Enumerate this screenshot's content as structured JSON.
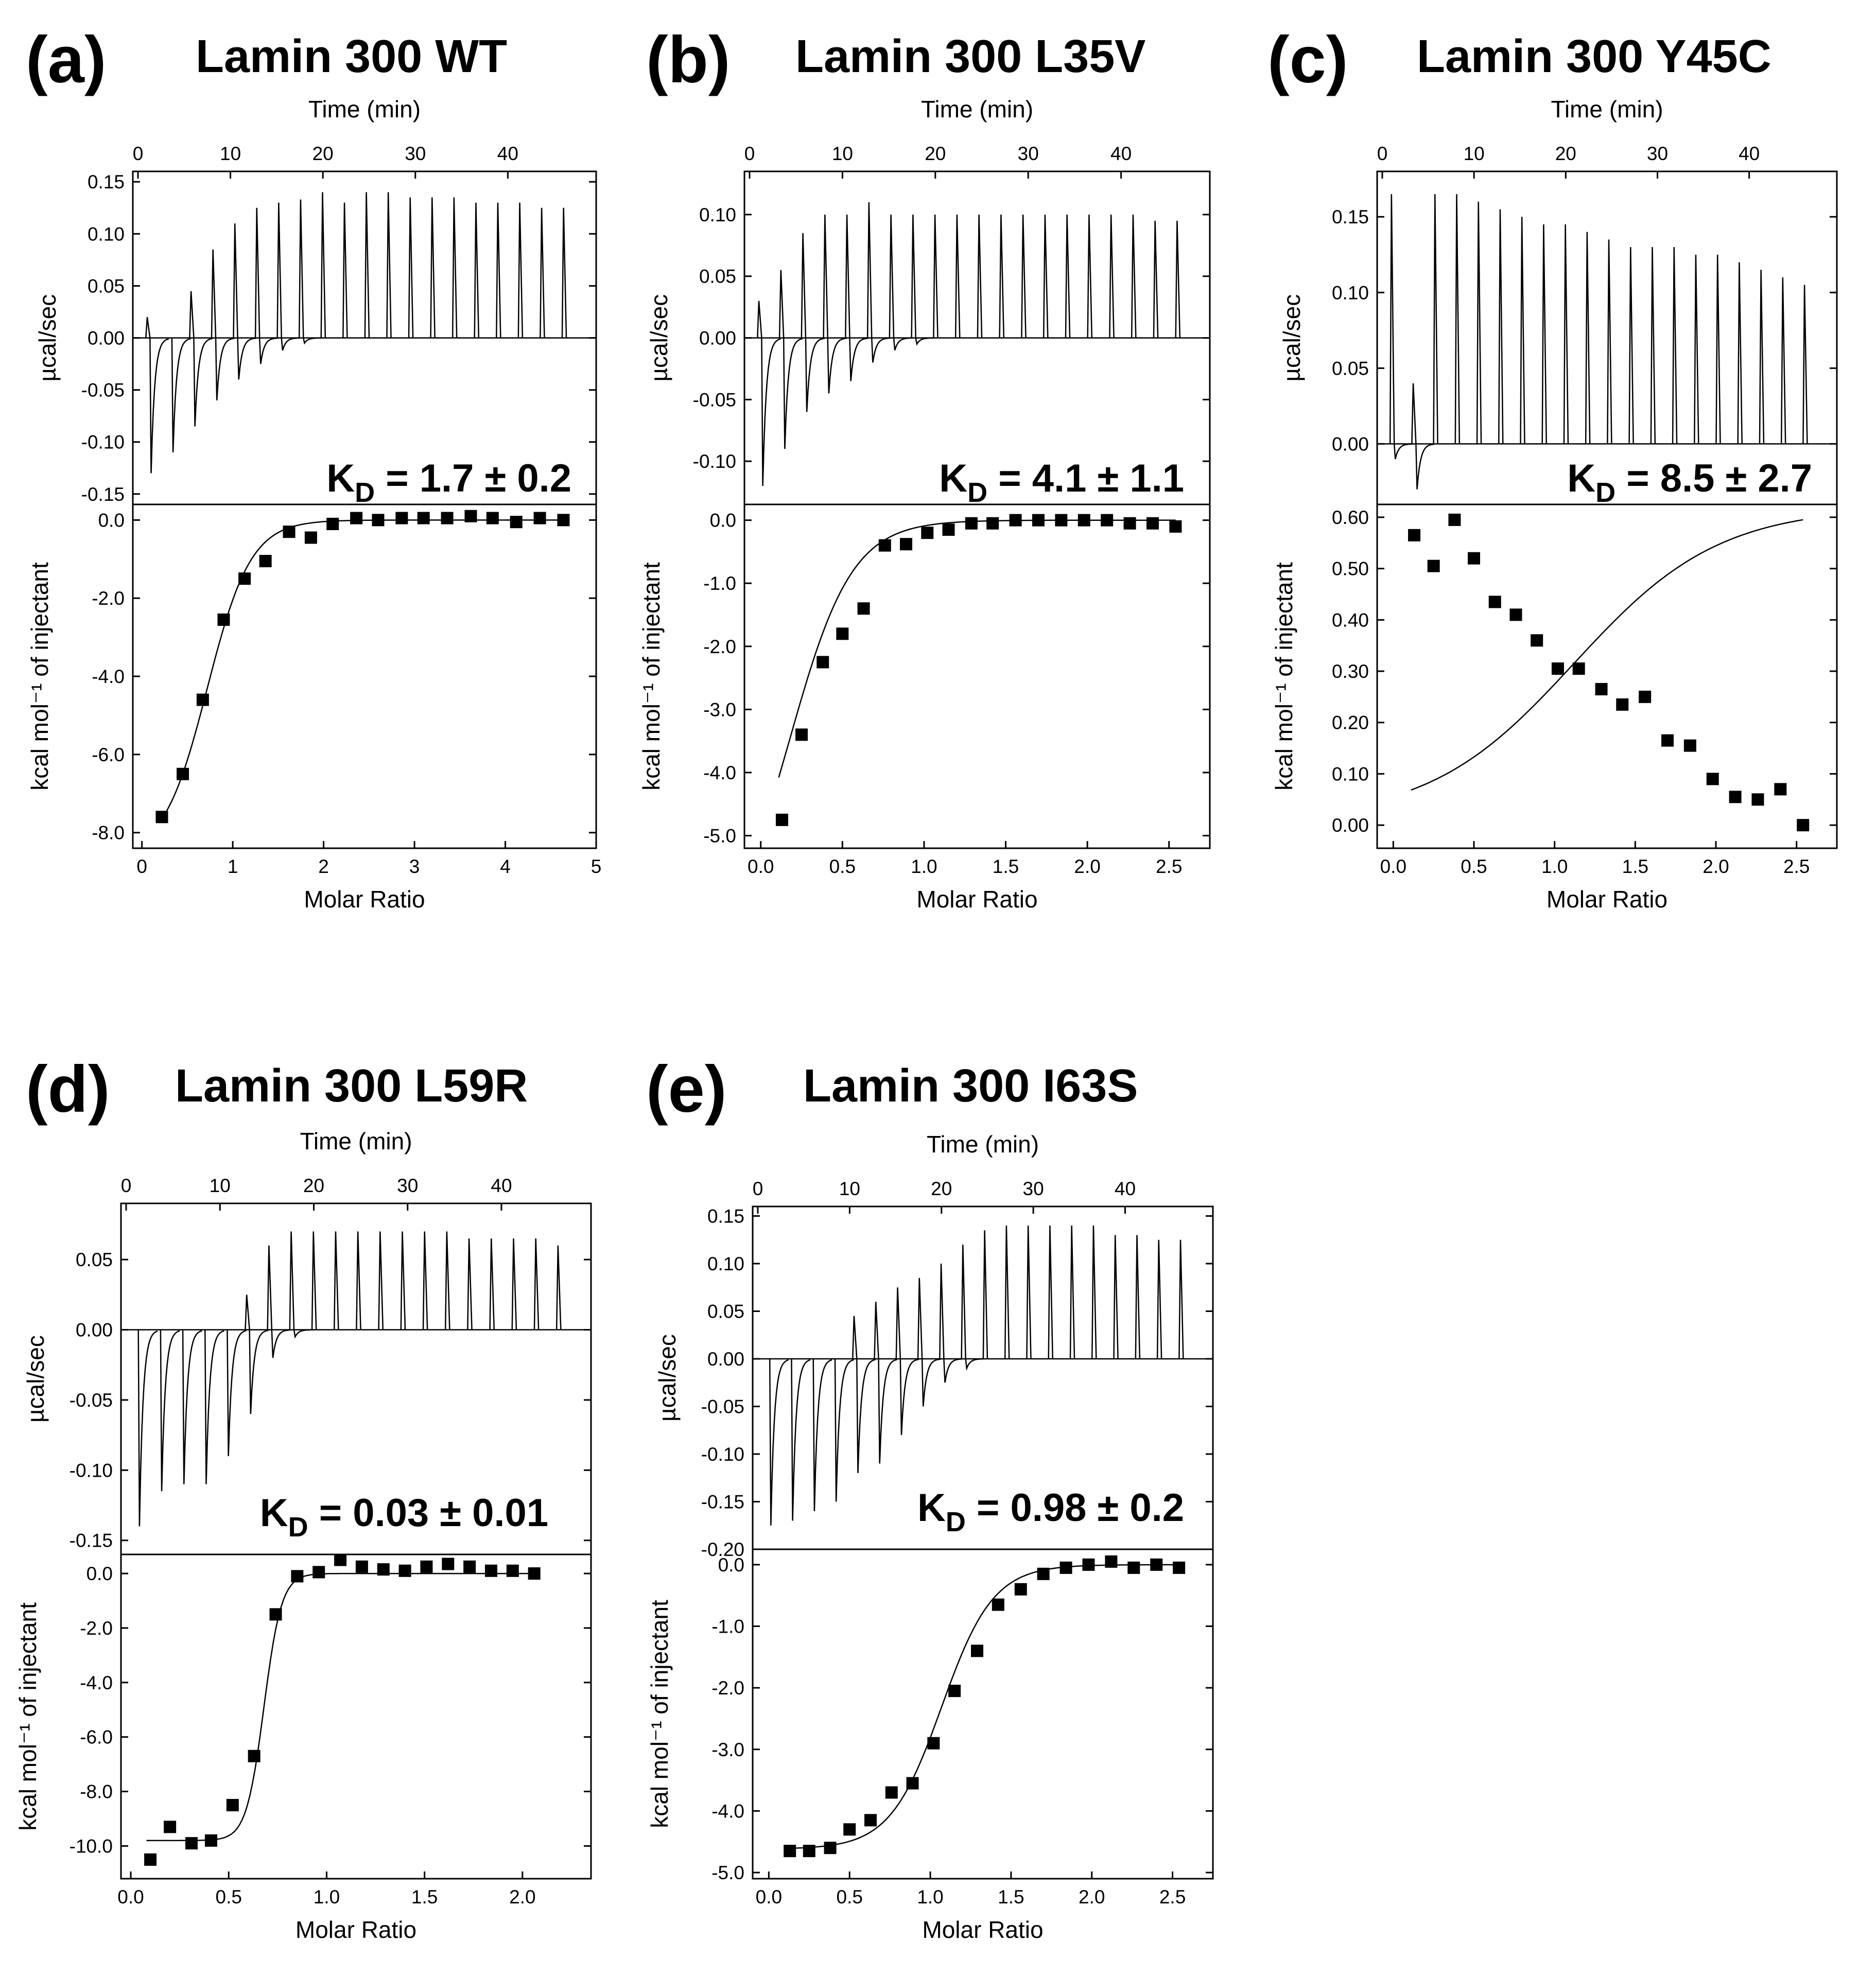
{
  "figure": {
    "colors": {
      "ink": "#000000",
      "background": "#ffffff"
    },
    "panels": [
      {
        "id": "a",
        "letter": "(a)",
        "title": "Lamin 300 WT",
        "kd": {
          "prefix": "K",
          "sub": "D",
          "text": " = 1.7 ± 0.2"
        },
        "chart_data": [
          {
            "type": "line",
            "role": "thermogram",
            "xlabel": "Time (min)",
            "ylabel": "µcal/sec",
            "xlim": [
              0,
              49
            ],
            "ylim": [
              -0.16,
              0.16
            ],
            "xticks": [
              0,
              10,
              20,
              30,
              40
            ],
            "yticks": [
              0.15,
              0.1,
              0.05,
              0.0,
              -0.05,
              -0.1,
              -0.15
            ],
            "ytick_labels": [
              "0.15",
              "0.10",
              "0.05",
              "0.00",
              "-0.05",
              "-0.10",
              "-0.15"
            ],
            "injection_start_min": 1.0,
            "injection_interval_min": 2.37,
            "up_peaks": [
              0.02,
              0.0,
              0.045,
              0.085,
              0.11,
              0.125,
              0.13,
              0.133,
              0.14,
              0.13,
              0.14,
              0.14,
              0.135,
              0.135,
              0.135,
              0.13,
              0.13,
              0.13,
              0.125,
              0.125
            ],
            "down_peaks": [
              -0.13,
              -0.11,
              -0.085,
              -0.06,
              -0.04,
              -0.025,
              -0.012,
              -0.005,
              0,
              0,
              0,
              0,
              0,
              0,
              0,
              0,
              0,
              0,
              0,
              0
            ]
          },
          {
            "type": "scatter",
            "role": "binding_isotherm",
            "xlabel": "Molar Ratio",
            "ylabel": "kcal mol⁻¹ of injectant",
            "xlim": [
              -0.1,
              5.0
            ],
            "ylim": [
              -8.4,
              0.4
            ],
            "xticks": [
              0,
              1,
              2,
              3,
              4,
              5
            ],
            "xtick_labels": [
              "0",
              "1",
              "2",
              "3",
              "4",
              "5"
            ],
            "yticks": [
              0.0,
              -2.0,
              -4.0,
              -6.0,
              -8.0
            ],
            "ytick_labels": [
              "0.0",
              "-2.0",
              "-4.0",
              "-6.0",
              "-8.0"
            ],
            "x": [
              0.22,
              0.45,
              0.67,
              0.9,
              1.13,
              1.36,
              1.62,
              1.86,
              2.1,
              2.36,
              2.6,
              2.86,
              3.1,
              3.36,
              3.62,
              3.86,
              4.12,
              4.38,
              4.64
            ],
            "y": [
              -7.6,
              -6.5,
              -4.6,
              -2.55,
              -1.5,
              -1.05,
              -0.3,
              -0.45,
              -0.1,
              0.05,
              0.0,
              0.05,
              0.05,
              0.05,
              0.1,
              0.05,
              -0.05,
              0.05,
              0.0
            ],
            "fit": {
              "model": "sigmoid",
              "bottom": -8.6,
              "top": 0.0,
              "midpoint": 0.72,
              "width": 0.24
            }
          }
        ]
      },
      {
        "id": "b",
        "letter": "(b)",
        "title": "Lamin 300 L35V",
        "kd": {
          "prefix": "K",
          "sub": "D",
          "text": " = 4.1 ± 1.1"
        },
        "chart_data": [
          {
            "type": "line",
            "role": "thermogram",
            "xlabel": "Time (min)",
            "ylabel": "µcal/sec",
            "xlim": [
              0,
              49
            ],
            "ylim": [
              -0.135,
              0.135
            ],
            "xticks": [
              0,
              10,
              20,
              30,
              40
            ],
            "yticks": [
              0.1,
              0.05,
              0.0,
              -0.05,
              -0.1
            ],
            "ytick_labels": [
              "0.10",
              "0.05",
              "0.00",
              "-0.05",
              "-0.10"
            ],
            "injection_start_min": 1.0,
            "injection_interval_min": 2.37,
            "up_peaks": [
              0.03,
              0.055,
              0.085,
              0.1,
              0.1,
              0.11,
              0.1,
              0.1,
              0.1,
              0.1,
              0.1,
              0.1,
              0.1,
              0.1,
              0.1,
              0.1,
              0.1,
              0.1,
              0.095,
              0.095
            ],
            "down_peaks": [
              -0.12,
              -0.09,
              -0.06,
              -0.045,
              -0.035,
              -0.02,
              -0.01,
              -0.005,
              0,
              0,
              0,
              0,
              0,
              0,
              0,
              0,
              0,
              0,
              0,
              0
            ]
          },
          {
            "type": "scatter",
            "role": "binding_isotherm",
            "xlabel": "Molar Ratio",
            "ylabel": "kcal mol⁻¹ of injectant",
            "xlim": [
              -0.1,
              2.75
            ],
            "ylim": [
              -5.2,
              0.25
            ],
            "xticks": [
              0.0,
              0.5,
              1.0,
              1.5,
              2.0,
              2.5
            ],
            "xtick_labels": [
              "0.0",
              "0.5",
              "1.0",
              "1.5",
              "2.0",
              "2.5"
            ],
            "yticks": [
              0.0,
              -1.0,
              -2.0,
              -3.0,
              -4.0,
              -5.0
            ],
            "ytick_labels": [
              "0.0",
              "-1.0",
              "-2.0",
              "-3.0",
              "-4.0",
              "-5.0"
            ],
            "x": [
              0.13,
              0.25,
              0.38,
              0.5,
              0.63,
              0.76,
              0.89,
              1.02,
              1.15,
              1.29,
              1.42,
              1.56,
              1.7,
              1.84,
              1.98,
              2.12,
              2.26,
              2.4,
              2.54
            ],
            "y": [
              -4.75,
              -3.4,
              -2.25,
              -1.8,
              -1.4,
              -0.4,
              -0.38,
              -0.2,
              -0.15,
              -0.05,
              -0.05,
              0.0,
              0.0,
              0.0,
              0.0,
              0.0,
              -0.05,
              -0.05,
              -0.1
            ],
            "fit": {
              "model": "sigmoid",
              "bottom": -6.9,
              "top": 0.0,
              "midpoint": 0.18,
              "width": 0.19
            }
          }
        ]
      },
      {
        "id": "c",
        "letter": "(c)",
        "title": "Lamin 300 Y45C",
        "kd": {
          "prefix": "K",
          "sub": "D",
          "text": " = 8.5 ± 2.7"
        },
        "chart_data": [
          {
            "type": "line",
            "role": "thermogram",
            "xlabel": "Time (min)",
            "ylabel": "µcal/sec",
            "xlim": [
              0,
              49
            ],
            "ylim": [
              -0.04,
              0.18
            ],
            "xticks": [
              0,
              10,
              20,
              30,
              40
            ],
            "yticks": [
              0.15,
              0.1,
              0.05,
              0.0
            ],
            "ytick_labels": [
              "0.15",
              "0.10",
              "0.05",
              "0.00"
            ],
            "injection_start_min": 1.0,
            "injection_interval_min": 2.37,
            "up_peaks": [
              0.165,
              0.04,
              0.165,
              0.165,
              0.16,
              0.155,
              0.15,
              0.145,
              0.145,
              0.14,
              0.135,
              0.13,
              0.13,
              0.13,
              0.125,
              0.125,
              0.12,
              0.115,
              0.11,
              0.105
            ],
            "down_peaks": [
              -0.01,
              -0.03,
              0,
              0,
              0,
              0,
              0,
              0,
              0,
              0,
              0,
              0,
              0,
              0,
              0,
              0,
              0,
              0,
              0,
              0
            ]
          },
          {
            "type": "scatter",
            "role": "binding_isotherm",
            "xlabel": "Molar Ratio",
            "ylabel": "kcal mol⁻¹ of injectant",
            "xlim": [
              -0.1,
              2.75
            ],
            "ylim": [
              -0.045,
              0.625
            ],
            "xticks": [
              0.0,
              0.5,
              1.0,
              1.5,
              2.0,
              2.5
            ],
            "xtick_labels": [
              "0.0",
              "0.5",
              "1.0",
              "1.5",
              "2.0",
              "2.5"
            ],
            "yticks": [
              0.6,
              0.5,
              0.4,
              0.3,
              0.2,
              0.1,
              0.0
            ],
            "ytick_labels": [
              "0.60",
              "0.50",
              "0.40",
              "0.30",
              "0.20",
              "0.10",
              "0.00"
            ],
            "x": [
              0.13,
              0.25,
              0.38,
              0.5,
              0.63,
              0.76,
              0.89,
              1.02,
              1.15,
              1.29,
              1.42,
              1.56,
              1.7,
              1.84,
              1.98,
              2.12,
              2.26,
              2.4,
              2.54
            ],
            "y": [
              0.565,
              0.505,
              0.595,
              0.52,
              0.435,
              0.41,
              0.36,
              0.305,
              0.305,
              0.265,
              0.235,
              0.25,
              0.165,
              0.155,
              0.09,
              0.055,
              0.05,
              0.07,
              0.0
            ],
            "fit": {
              "model": "sigmoid",
              "bottom": 0.01,
              "top": 0.62,
              "midpoint": 1.12,
              "width": 0.45
            }
          }
        ]
      },
      {
        "id": "d",
        "letter": "(d)",
        "title": "Lamin 300 L59R",
        "kd": {
          "prefix": "K",
          "sub": "D",
          "text": " = 0.03 ± 0.01"
        },
        "chart_data": [
          {
            "type": "line",
            "role": "thermogram",
            "xlabel": "Time (min)",
            "ylabel": "µcal/sec",
            "xlim": [
              0,
              49
            ],
            "ylim": [
              -0.16,
              0.09
            ],
            "xticks": [
              0,
              10,
              20,
              30,
              40
            ],
            "yticks": [
              0.05,
              0.0,
              -0.05,
              -0.1,
              -0.15
            ],
            "ytick_labels": [
              "0.05",
              "0.00",
              "-0.05",
              "-0.10",
              "-0.15"
            ],
            "injection_start_min": 1.0,
            "injection_interval_min": 2.37,
            "up_peaks": [
              0,
              0,
              0,
              0,
              0,
              0.025,
              0.06,
              0.07,
              0.07,
              0.07,
              0.07,
              0.07,
              0.07,
              0.07,
              0.07,
              0.065,
              0.065,
              0.065,
              0.065,
              0.06
            ],
            "down_peaks": [
              -0.14,
              -0.115,
              -0.11,
              -0.11,
              -0.09,
              -0.06,
              -0.02,
              -0.005,
              0,
              0,
              0,
              0,
              0,
              0,
              0,
              0,
              0,
              0,
              0,
              0
            ]
          },
          {
            "type": "scatter",
            "role": "binding_isotherm",
            "xlabel": "Molar Ratio",
            "ylabel": "kcal mol⁻¹ of injectant",
            "xlim": [
              -0.05,
              2.35
            ],
            "ylim": [
              -11.2,
              0.7
            ],
            "xticks": [
              0.0,
              0.5,
              1.0,
              1.5,
              2.0
            ],
            "xtick_labels": [
              "0.0",
              "0.5",
              "1.0",
              "1.5",
              "2.0"
            ],
            "yticks": [
              0.0,
              -2.0,
              -4.0,
              -6.0,
              -8.0,
              -10.0
            ],
            "ytick_labels": [
              "0.0",
              "-2.0",
              "-4.0",
              "-6.0",
              "-8.0",
              "-10.0"
            ],
            "x": [
              0.1,
              0.2,
              0.31,
              0.41,
              0.52,
              0.63,
              0.74,
              0.85,
              0.96,
              1.07,
              1.18,
              1.29,
              1.4,
              1.51,
              1.62,
              1.73,
              1.84,
              1.95,
              2.06
            ],
            "y": [
              -10.5,
              -9.3,
              -9.9,
              -9.8,
              -8.5,
              -6.7,
              -1.5,
              -0.1,
              0.05,
              0.5,
              0.25,
              0.15,
              0.1,
              0.25,
              0.35,
              0.25,
              0.1,
              0.1,
              0.0
            ],
            "fit": {
              "model": "sigmoid",
              "bottom": -9.8,
              "top": 0.0,
              "midpoint": 0.68,
              "width": 0.045
            }
          }
        ]
      },
      {
        "id": "e",
        "letter": "(e)",
        "title": "Lamin 300 I63S",
        "kd": {
          "prefix": "K",
          "sub": "D",
          "text": " = 0.98 ± 0.2"
        },
        "chart_data": [
          {
            "type": "line",
            "role": "thermogram",
            "xlabel": "Time (min)",
            "ylabel": "µcal/sec",
            "xlim": [
              0,
              49
            ],
            "ylim": [
              -0.2,
              0.16
            ],
            "xticks": [
              0,
              10,
              20,
              30,
              40
            ],
            "yticks": [
              0.15,
              0.1,
              0.05,
              0.0,
              -0.05,
              -0.1,
              -0.15,
              -0.2
            ],
            "ytick_labels": [
              "0.15",
              "0.10",
              "0.05",
              "0.00",
              "-0.05",
              "-0.10",
              "-0.15",
              "-0.20"
            ],
            "injection_start_min": 1.0,
            "injection_interval_min": 2.37,
            "up_peaks": [
              0,
              0,
              0,
              0,
              0.045,
              0.06,
              0.075,
              0.085,
              0.1,
              0.12,
              0.135,
              0.14,
              0.14,
              0.14,
              0.14,
              0.14,
              0.13,
              0.13,
              0.125,
              0.125
            ],
            "down_peaks": [
              -0.175,
              -0.17,
              -0.16,
              -0.15,
              -0.12,
              -0.11,
              -0.08,
              -0.05,
              -0.025,
              -0.01,
              0,
              0,
              0,
              0,
              0,
              0,
              0,
              0,
              0,
              0
            ]
          },
          {
            "type": "scatter",
            "role": "binding_isotherm",
            "xlabel": "Molar Ratio",
            "ylabel": "kcal mol⁻¹ of injectant",
            "xlim": [
              -0.1,
              2.75
            ],
            "ylim": [
              -5.1,
              0.25
            ],
            "xticks": [
              0.0,
              0.5,
              1.0,
              1.5,
              2.0,
              2.5
            ],
            "xtick_labels": [
              "0.0",
              "0.5",
              "1.0",
              "1.5",
              "2.0",
              "2.5"
            ],
            "yticks": [
              0.0,
              -1.0,
              -2.0,
              -3.0,
              -4.0,
              -5.0
            ],
            "ytick_labels": [
              "0.0",
              "-1.0",
              "-2.0",
              "-3.0",
              "-4.0",
              "-5.0"
            ],
            "x": [
              0.13,
              0.25,
              0.38,
              0.5,
              0.63,
              0.76,
              0.89,
              1.02,
              1.15,
              1.29,
              1.42,
              1.56,
              1.7,
              1.84,
              1.98,
              2.12,
              2.26,
              2.4,
              2.54
            ],
            "y": [
              -4.65,
              -4.65,
              -4.6,
              -4.3,
              -4.15,
              -3.7,
              -3.55,
              -2.9,
              -2.05,
              -1.4,
              -0.65,
              -0.4,
              -0.15,
              -0.05,
              0.0,
              0.05,
              -0.05,
              0.0,
              -0.05
            ],
            "fit": {
              "model": "sigmoid",
              "bottom": -4.62,
              "top": 0.0,
              "midpoint": 1.07,
              "width": 0.16
            }
          }
        ]
      }
    ]
  }
}
